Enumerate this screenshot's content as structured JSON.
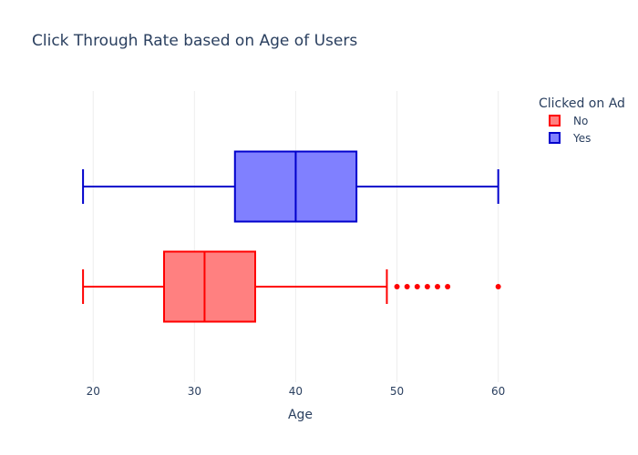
{
  "chart_data": {
    "type": "box",
    "orientation": "horizontal",
    "title": "Click Through Rate based on Age of Users",
    "xlabel": "Age",
    "xlim": [
      18,
      63
    ],
    "xticks": [
      20,
      30,
      40,
      50,
      60
    ],
    "grid": true,
    "legend": {
      "title": "Clicked on Ad",
      "placement": "top-right",
      "entries": [
        "No",
        "Yes"
      ]
    },
    "series": [
      {
        "name": "No",
        "color": "#ff0000",
        "fill": "#ff8080",
        "min": 19,
        "q1": 27,
        "median": 31,
        "q3": 36,
        "max": 49,
        "outliers": [
          50,
          51,
          52,
          53,
          54,
          55,
          60
        ]
      },
      {
        "name": "Yes",
        "color": "#0000cc",
        "fill": "#8080ff",
        "min": 19,
        "q1": 34,
        "median": 40,
        "q3": 46,
        "max": 60,
        "outliers": []
      }
    ]
  }
}
